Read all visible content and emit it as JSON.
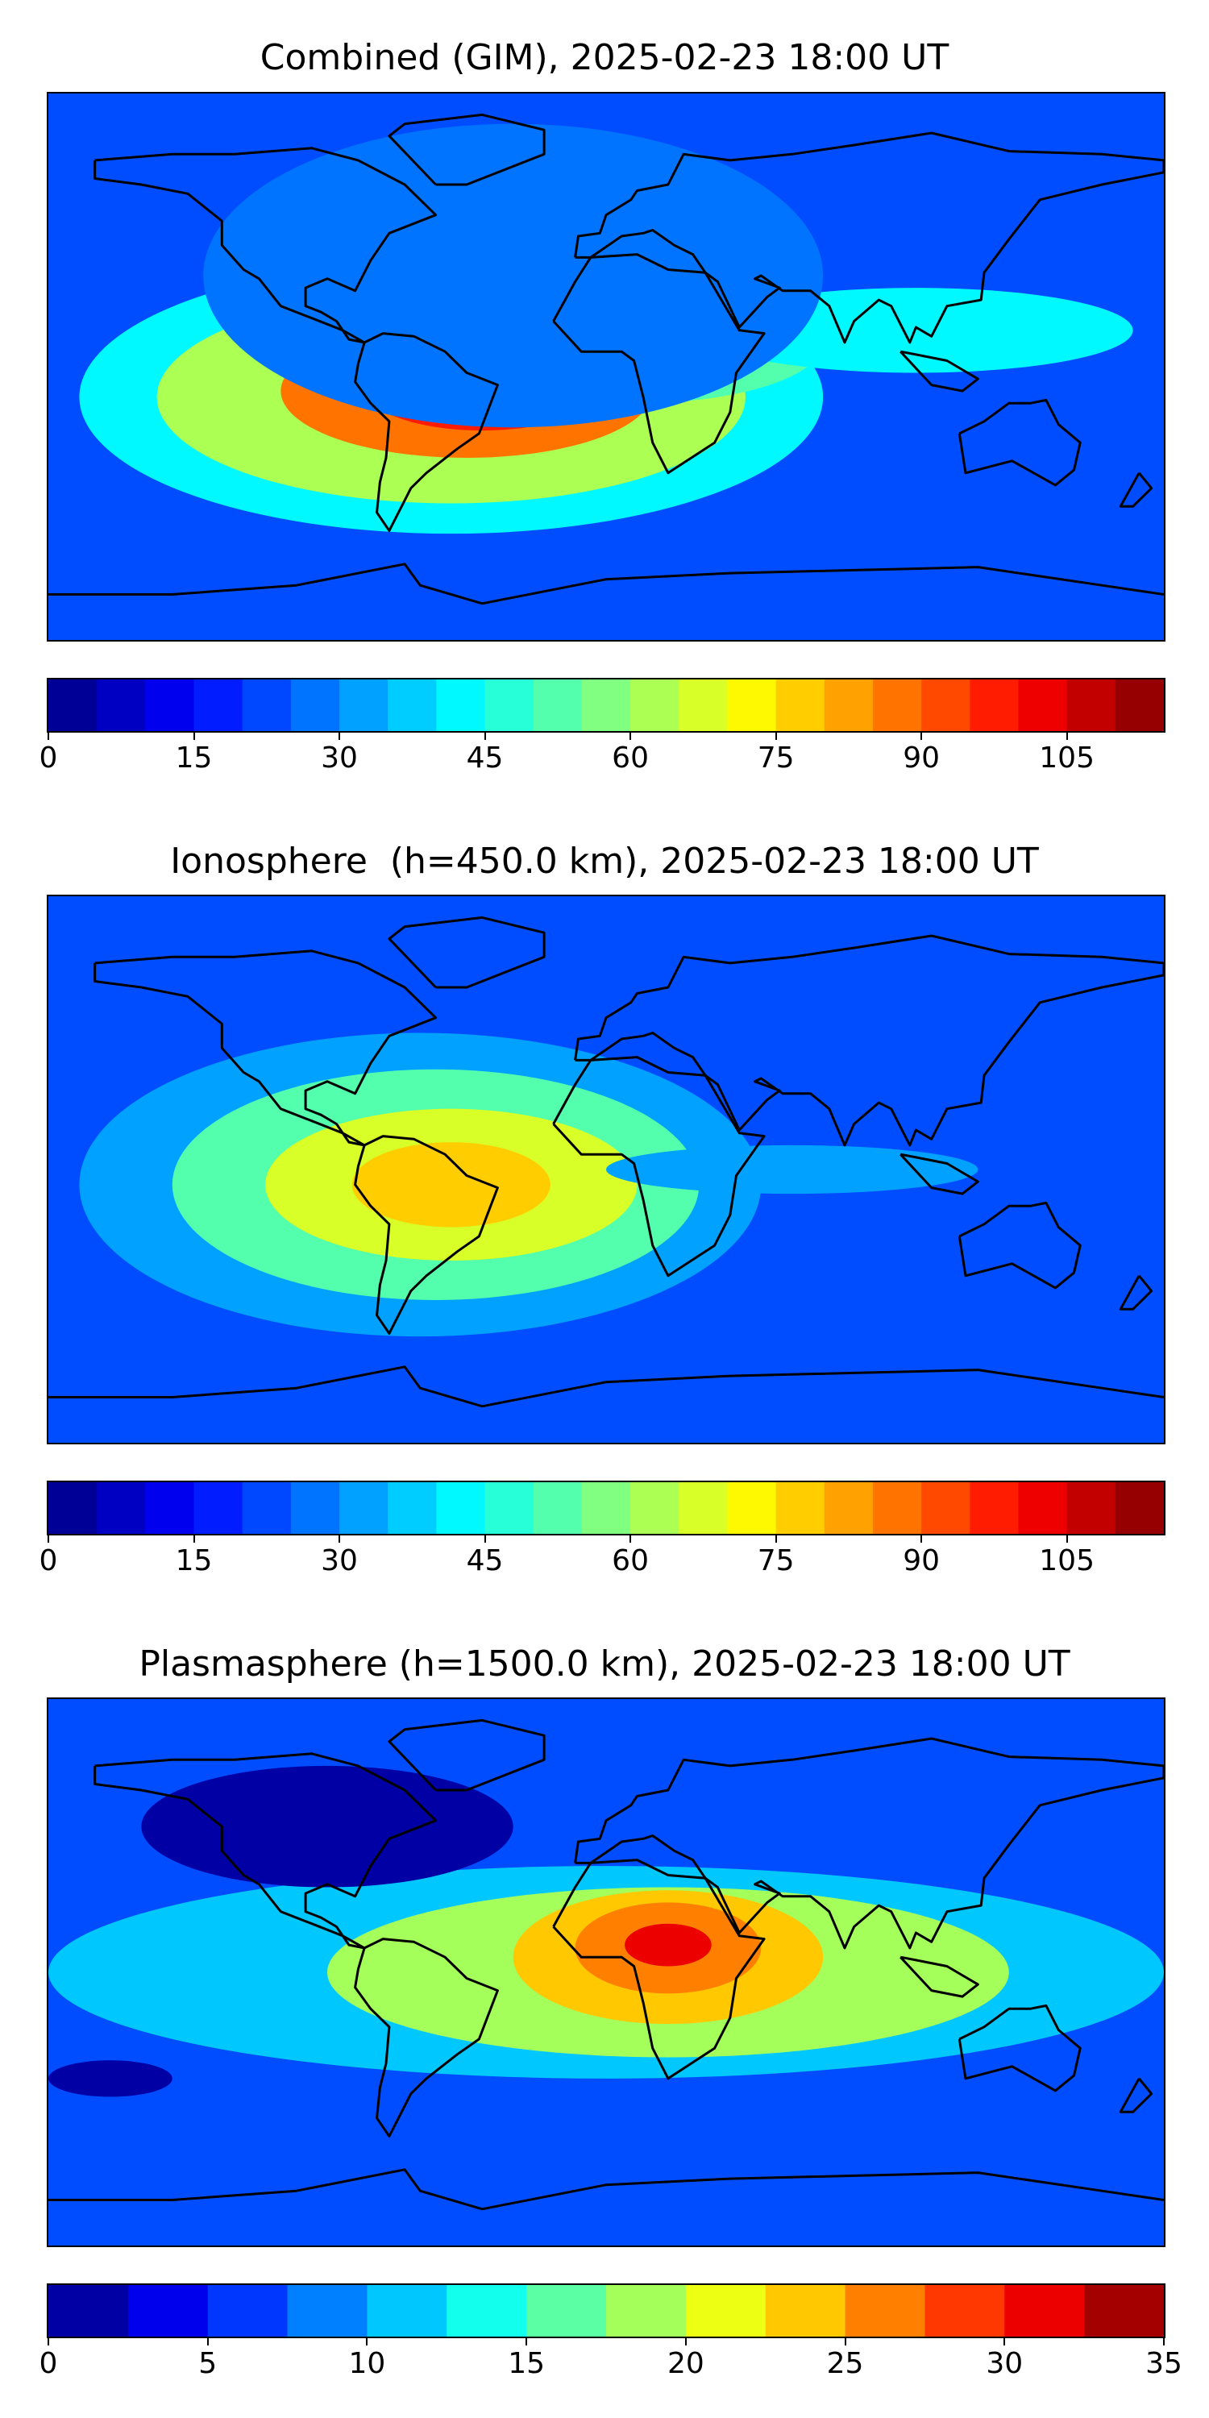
{
  "panels": [
    {
      "title": "Combined (GIM), 2025-02-23 18:00 UT",
      "colorbar": {
        "min": 0,
        "max": 115,
        "step": 5,
        "ticks": [
          "0",
          "15",
          "30",
          "45",
          "60",
          "75",
          "90",
          "105"
        ]
      },
      "blobs": [
        {
          "lon": -50,
          "lat": -10,
          "rx": 120,
          "ry": 45,
          "level": 0.35
        },
        {
          "lon": -50,
          "lat": -10,
          "rx": 95,
          "ry": 35,
          "level": 0.55
        },
        {
          "lon": -45,
          "lat": -8,
          "rx": 60,
          "ry": 22,
          "level": 0.75
        },
        {
          "lon": -40,
          "lat": -7,
          "rx": 38,
          "ry": 14,
          "level": 0.85
        },
        {
          "lon": 10,
          "lat": 8,
          "rx": 60,
          "ry": 20,
          "level": 0.45
        },
        {
          "lon": 100,
          "lat": 12,
          "rx": 70,
          "ry": 14,
          "level": 0.35
        },
        {
          "lon": -30,
          "lat": 30,
          "rx": 100,
          "ry": 50,
          "level": 0.25
        }
      ]
    },
    {
      "title": "Ionosphere  (h=450.0 km), 2025-02-23 18:00 UT",
      "colorbar": {
        "min": 0,
        "max": 115,
        "step": 5,
        "ticks": [
          "0",
          "15",
          "30",
          "45",
          "60",
          "75",
          "90",
          "105"
        ]
      },
      "blobs": [
        {
          "lon": -60,
          "lat": -5,
          "rx": 110,
          "ry": 50,
          "level": 0.3
        },
        {
          "lon": -55,
          "lat": -5,
          "rx": 85,
          "ry": 38,
          "level": 0.45
        },
        {
          "lon": -50,
          "lat": -5,
          "rx": 60,
          "ry": 25,
          "level": 0.58
        },
        {
          "lon": -50,
          "lat": -5,
          "rx": 32,
          "ry": 14,
          "level": 0.66
        },
        {
          "lon": 60,
          "lat": 0,
          "rx": 60,
          "ry": 8,
          "level": 0.3
        }
      ]
    },
    {
      "title": "Plasmasphere (h=1500.0 km), 2025-02-23 18:00 UT",
      "colorbar": {
        "min": 0,
        "max": 35,
        "step": 2.5,
        "ticks": [
          "0",
          "5",
          "10",
          "15",
          "20",
          "25",
          "30",
          "35"
        ]
      },
      "blobs": [
        {
          "lon": 0,
          "lat": 0,
          "rx": 180,
          "ry": 35,
          "level": 0.35
        },
        {
          "lon": 20,
          "lat": 0,
          "rx": 110,
          "ry": 28,
          "level": 0.5
        },
        {
          "lon": 20,
          "lat": 5,
          "rx": 50,
          "ry": 22,
          "level": 0.65
        },
        {
          "lon": 20,
          "lat": 8,
          "rx": 30,
          "ry": 15,
          "level": 0.78
        },
        {
          "lon": 20,
          "lat": 9,
          "rx": 14,
          "ry": 7,
          "level": 0.9
        },
        {
          "lon": -90,
          "lat": 48,
          "rx": 60,
          "ry": 20,
          "level": 0.04
        },
        {
          "lon": -160,
          "lat": -35,
          "rx": 20,
          "ry": 6,
          "level": 0.04
        }
      ]
    }
  ]
}
